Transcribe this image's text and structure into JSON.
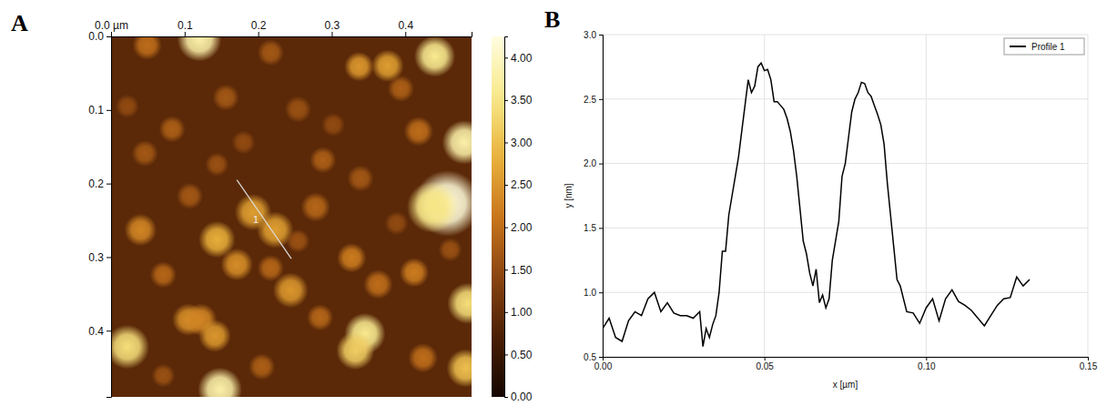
{
  "chart_data": [
    {
      "type": "heatmap",
      "title": "A",
      "xlim": [
        0,
        0.49
      ],
      "xticks": [
        {
          "value": 0,
          "label": "0.0 µm"
        },
        0.1,
        0.2,
        0.3,
        0.4
      ],
      "ylim": [
        0,
        0.49
      ],
      "yticks": [
        {
          "value": 0,
          "label": "0.0"
        },
        0.1,
        0.2,
        0.3,
        0.4
      ],
      "background": 0.9,
      "particles": {
        "x": [
          0.12,
          0.049,
          0.44,
          0.376,
          0.337,
          0.48,
          0.457,
          0.437,
          0.193,
          0.223,
          0.144,
          0.04,
          0.171,
          0.244,
          0.327,
          0.363,
          0.412,
          0.485,
          0.105,
          0.122,
          0.141,
          0.022,
          0.345,
          0.332,
          0.148,
          0.482,
          0.278,
          0.083,
          0.418,
          0.288,
          0.046,
          0.217,
          0.394,
          0.156,
          0.254,
          0.071,
          0.424,
          0.205,
          0.284,
          0.339,
          0.107,
          0.217,
          0.022,
          0.302,
          0.144,
          0.461,
          0.071,
          0.388,
          0.18,
          0.254
        ],
        "y": [
          0.004,
          0.012,
          0.027,
          0.04,
          0.041,
          0.144,
          0.227,
          0.232,
          0.239,
          0.263,
          0.276,
          0.263,
          0.31,
          0.345,
          0.301,
          0.337,
          0.321,
          0.363,
          0.385,
          0.385,
          0.407,
          0.422,
          0.404,
          0.427,
          0.48,
          0.451,
          0.232,
          0.126,
          0.129,
          0.168,
          0.159,
          0.315,
          0.071,
          0.083,
          0.099,
          0.324,
          0.437,
          0.449,
          0.382,
          0.193,
          0.217,
          0.022,
          0.095,
          0.12,
          0.174,
          0.29,
          0.461,
          0.254,
          0.144,
          0.278
        ],
        "values": [
          3.8,
          2.0,
          3.6,
          2.6,
          2.5,
          3.8,
          4.2,
          3.5,
          2.6,
          2.6,
          2.8,
          2.3,
          2.4,
          2.5,
          2.2,
          2.0,
          2.2,
          3.4,
          2.4,
          2.3,
          2.5,
          3.4,
          3.6,
          3.2,
          3.8,
          3.0,
          1.9,
          1.8,
          2.0,
          1.8,
          1.7,
          1.9,
          1.8,
          1.7,
          1.6,
          1.9,
          2.0,
          1.8,
          1.9,
          1.7,
          1.7,
          1.7,
          1.5,
          1.5,
          1.6,
          1.6,
          1.6,
          1.5,
          1.5,
          1.6
        ],
        "sizes": [
          0.03,
          0.02,
          0.028,
          0.022,
          0.02,
          0.03,
          0.045,
          0.035,
          0.025,
          0.025,
          0.025,
          0.022,
          0.022,
          0.024,
          0.02,
          0.02,
          0.02,
          0.028,
          0.022,
          0.022,
          0.022,
          0.03,
          0.028,
          0.026,
          0.03,
          0.026,
          0.02,
          0.018,
          0.02,
          0.018,
          0.018,
          0.018,
          0.018,
          0.018,
          0.018,
          0.018,
          0.02,
          0.018,
          0.018,
          0.018,
          0.018,
          0.018,
          0.016,
          0.016,
          0.016,
          0.016,
          0.016,
          0.016,
          0.016,
          0.016
        ]
      },
      "colorbar": {
        "range": [
          0,
          4.25
        ],
        "ticks": [
          {
            "value": 0,
            "label": "0.00"
          },
          {
            "value": 0.5,
            "label": "0.50"
          },
          {
            "value": 1,
            "label": "1.00"
          },
          {
            "value": 1.5,
            "label": "1.50"
          },
          {
            "value": 2,
            "label": "2.00"
          },
          {
            "value": 2.5,
            "label": "2.50"
          },
          {
            "value": 3,
            "label": "3.00"
          },
          {
            "value": 3.5,
            "label": "3.50"
          },
          {
            "value": 4,
            "label": "4.00"
          }
        ]
      },
      "annotations": [
        {
          "text": "1",
          "x": [
            0.171,
            0.245
          ],
          "y": [
            0.195,
            0.302
          ]
        }
      ]
    },
    {
      "type": "line",
      "title": "B",
      "xlabel": "x [µm]",
      "ylabel": "y [nm]",
      "xlim": [
        0,
        0.15
      ],
      "xticks": [
        {
          "value": 0,
          "label": "0.00"
        },
        0.05,
        {
          "value": 0.1,
          "label": "0.10"
        },
        0.15
      ],
      "ylim": [
        0.5,
        3.0
      ],
      "yticks": [
        0.5,
        {
          "value": 1,
          "label": "1.0"
        },
        1.5,
        {
          "value": 2,
          "label": "2.0"
        },
        2.5,
        {
          "value": 3,
          "label": "3.0"
        }
      ],
      "grid": true,
      "legend": "top-right",
      "x": [
        0,
        0.002,
        0.004,
        0.006,
        0.008,
        0.01,
        0.012,
        0.014,
        0.016,
        0.018,
        0.02,
        0.022,
        0.024,
        0.026,
        0.028,
        0.03,
        0.031,
        0.032,
        0.033,
        0.034,
        0.035,
        0.036,
        0.037,
        0.038,
        0.039,
        0.04,
        0.041,
        0.042,
        0.043,
        0.044,
        0.045,
        0.046,
        0.047,
        0.048,
        0.049,
        0.05,
        0.051,
        0.052,
        0.053,
        0.054,
        0.055,
        0.056,
        0.057,
        0.058,
        0.059,
        0.06,
        0.061,
        0.062,
        0.063,
        0.064,
        0.065,
        0.066,
        0.067,
        0.068,
        0.069,
        0.07,
        0.071,
        0.072,
        0.073,
        0.074,
        0.075,
        0.076,
        0.077,
        0.078,
        0.079,
        0.08,
        0.081,
        0.082,
        0.083,
        0.084,
        0.085,
        0.086,
        0.087,
        0.088,
        0.089,
        0.09,
        0.091,
        0.092,
        0.094,
        0.096,
        0.098,
        0.1,
        0.102,
        0.104,
        0.106,
        0.108,
        0.11,
        0.112,
        0.114,
        0.116,
        0.118,
        0.12,
        0.122,
        0.124,
        0.126,
        0.128,
        0.13,
        0.132
      ],
      "series": [
        {
          "name": "Profile 1",
          "color": "#000000",
          "values": [
            0.72,
            0.8,
            0.65,
            0.62,
            0.78,
            0.85,
            0.82,
            0.95,
            1.0,
            0.85,
            0.92,
            0.84,
            0.82,
            0.82,
            0.8,
            0.85,
            0.58,
            0.72,
            0.65,
            0.75,
            0.82,
            1.0,
            1.32,
            1.32,
            1.6,
            1.75,
            1.9,
            2.05,
            2.25,
            2.45,
            2.65,
            2.55,
            2.6,
            2.75,
            2.78,
            2.72,
            2.73,
            2.65,
            2.48,
            2.48,
            2.45,
            2.42,
            2.35,
            2.25,
            2.1,
            1.9,
            1.65,
            1.4,
            1.3,
            1.15,
            1.05,
            1.18,
            0.92,
            0.98,
            0.88,
            0.95,
            1.25,
            1.4,
            1.55,
            1.9,
            2.0,
            2.2,
            2.4,
            2.5,
            2.55,
            2.63,
            2.62,
            2.55,
            2.52,
            2.45,
            2.38,
            2.3,
            2.15,
            1.85,
            1.6,
            1.35,
            1.1,
            1.05,
            0.85,
            0.84,
            0.76,
            0.88,
            0.95,
            0.78,
            0.95,
            1.02,
            0.93,
            0.9,
            0.86,
            0.8,
            0.74,
            0.82,
            0.9,
            0.95,
            0.96,
            1.12,
            1.05,
            1.1
          ]
        }
      ]
    }
  ]
}
